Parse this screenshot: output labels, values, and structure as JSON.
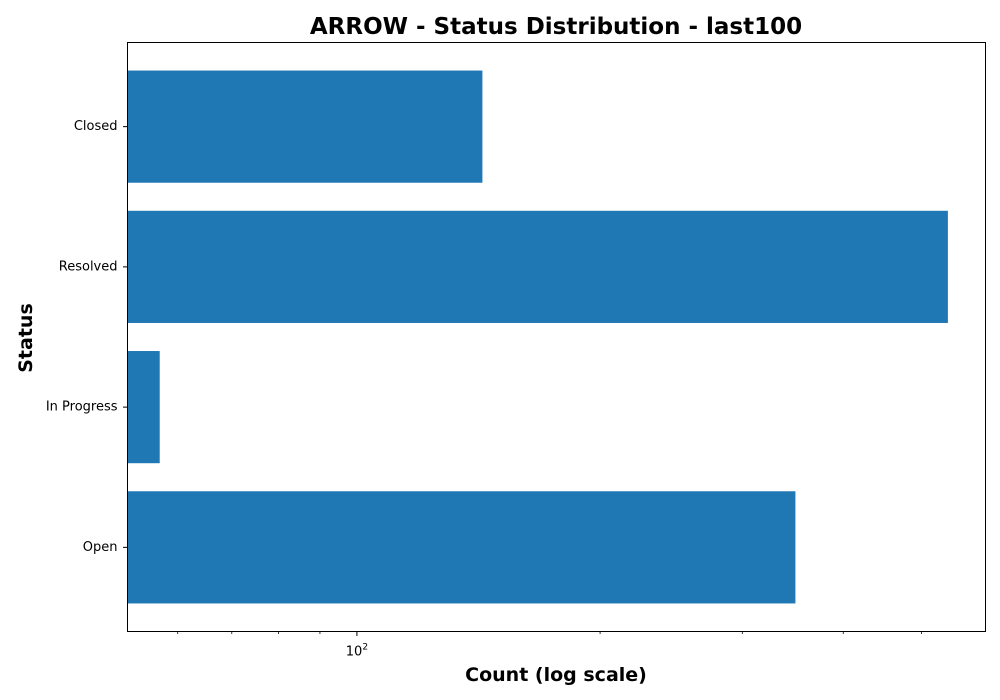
{
  "chart_data": {
    "type": "bar",
    "orientation": "horizontal",
    "title": "ARROW - Status Distribution - last100",
    "xlabel": "Count (log scale)",
    "ylabel": "Status",
    "x_scale": "log",
    "xlim": [
      52,
      600
    ],
    "categories": [
      "Open",
      "In Progress",
      "Resolved",
      "Closed"
    ],
    "values": [
      349,
      57,
      539,
      143
    ],
    "bar_color": "#1f77b4",
    "x_major_ticks": [
      {
        "value": 100,
        "base": "10",
        "exponent": "2"
      }
    ],
    "x_minor_ticks": [
      60,
      70,
      80,
      90,
      200,
      300,
      400,
      500
    ],
    "grid": false,
    "legend": "none"
  }
}
